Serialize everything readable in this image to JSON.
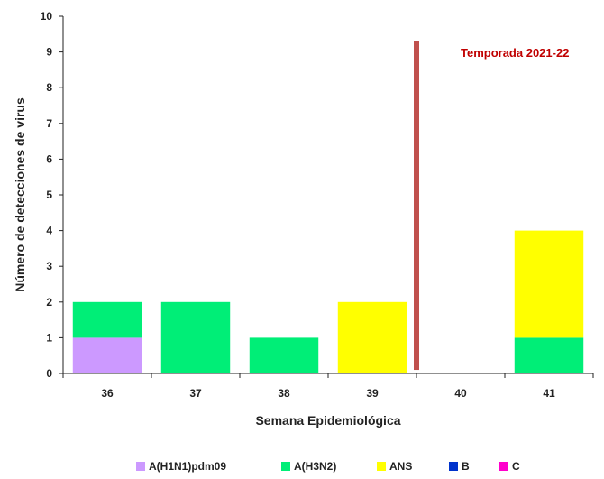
{
  "chart_data": {
    "type": "bar",
    "stacked": true,
    "title": "",
    "xlabel": "Semana Epidemiológica",
    "ylabel": "Número de detecciones de virus",
    "ylim": [
      0,
      10
    ],
    "yticks": [
      0,
      1,
      2,
      3,
      4,
      5,
      6,
      7,
      8,
      9,
      10
    ],
    "categories": [
      "36",
      "37",
      "38",
      "39",
      "40",
      "41"
    ],
    "series": [
      {
        "name": "A(H1N1)pdm09",
        "color": "#cc99ff",
        "values": [
          1,
          0,
          0,
          0,
          0,
          0
        ]
      },
      {
        "name": "A(H3N2)",
        "color": "#00ee77",
        "values": [
          1,
          2,
          1,
          0,
          0,
          1
        ]
      },
      {
        "name": "ANS",
        "color": "#ffff00",
        "values": [
          0,
          0,
          0,
          2,
          0,
          3
        ]
      },
      {
        "name": "B",
        "color": "#0033cc",
        "values": [
          0,
          0,
          0,
          0,
          0,
          0
        ]
      },
      {
        "name": "C",
        "color": "#ff00cc",
        "values": [
          0,
          0,
          0,
          0,
          0,
          0
        ]
      }
    ],
    "annotation": {
      "text": "Temporada 2021-22",
      "color": "#c00000",
      "marker_color": "#c0504d",
      "marker_between": [
        "39",
        "40"
      ],
      "marker_y": [
        0.1,
        9.3
      ]
    },
    "legend_position": "bottom",
    "grid": false
  }
}
